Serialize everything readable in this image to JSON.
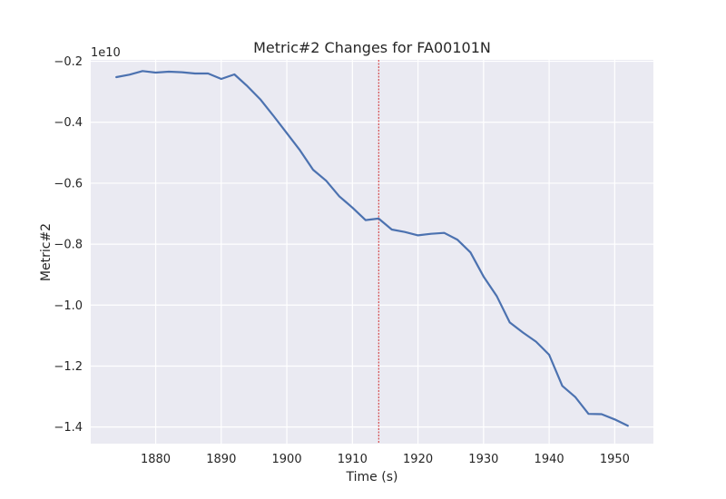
{
  "chart_data": {
    "type": "line",
    "title": "Metric#2 Changes for FA00101N",
    "xlabel": "Time (s)",
    "ylabel": "Metric#2",
    "y_offset_label": "1e10",
    "y_scale": 10000000000,
    "xlim": [
      1870.1,
      1955.9
    ],
    "ylim": [
      -1.4546,
      -0.1954
    ],
    "x_ticks": [
      1880,
      1890,
      1900,
      1910,
      1920,
      1930,
      1940,
      1950
    ],
    "x_tick_labels": [
      "1880",
      "1890",
      "1900",
      "1910",
      "1920",
      "1930",
      "1940",
      "1950"
    ],
    "y_ticks": [
      -1.4,
      -1.2,
      -1.0,
      -0.8,
      -0.6,
      -0.4,
      -0.2
    ],
    "y_tick_labels": [
      "−1.4",
      "−1.2",
      "−1.0",
      "−0.8",
      "−0.6",
      "−0.4",
      "−0.2"
    ],
    "grid": true,
    "vline_x": 1914,
    "series": [
      {
        "color": "#4c72b0",
        "x": [
          1874,
          1876,
          1878,
          1880,
          1882,
          1884,
          1886,
          1888,
          1890,
          1892,
          1894,
          1896,
          1898,
          1900,
          1902,
          1904,
          1906,
          1908,
          1910,
          1912,
          1914,
          1916,
          1918,
          1920,
          1922,
          1924,
          1926,
          1928,
          1930,
          1932,
          1934,
          1936,
          1938,
          1940,
          1942,
          1944,
          1946,
          1948,
          1950,
          1952
        ],
        "y": [
          -0.252,
          -0.244,
          -0.232,
          -0.237,
          -0.234,
          -0.236,
          -0.24,
          -0.24,
          -0.258,
          -0.243,
          -0.282,
          -0.326,
          -0.38,
          -0.436,
          -0.492,
          -0.556,
          -0.592,
          -0.643,
          -0.68,
          -0.721,
          -0.716,
          -0.752,
          -0.76,
          -0.771,
          -0.766,
          -0.763,
          -0.785,
          -0.827,
          -0.906,
          -0.97,
          -1.057,
          -1.09,
          -1.12,
          -1.163,
          -1.265,
          -1.302,
          -1.357,
          -1.358,
          -1.375,
          -1.396
        ]
      }
    ]
  },
  "colors": {
    "plot_background": "#eaeaf2",
    "grid": "#ffffff",
    "line": "#4c72b0",
    "vline": "#cc0000"
  }
}
